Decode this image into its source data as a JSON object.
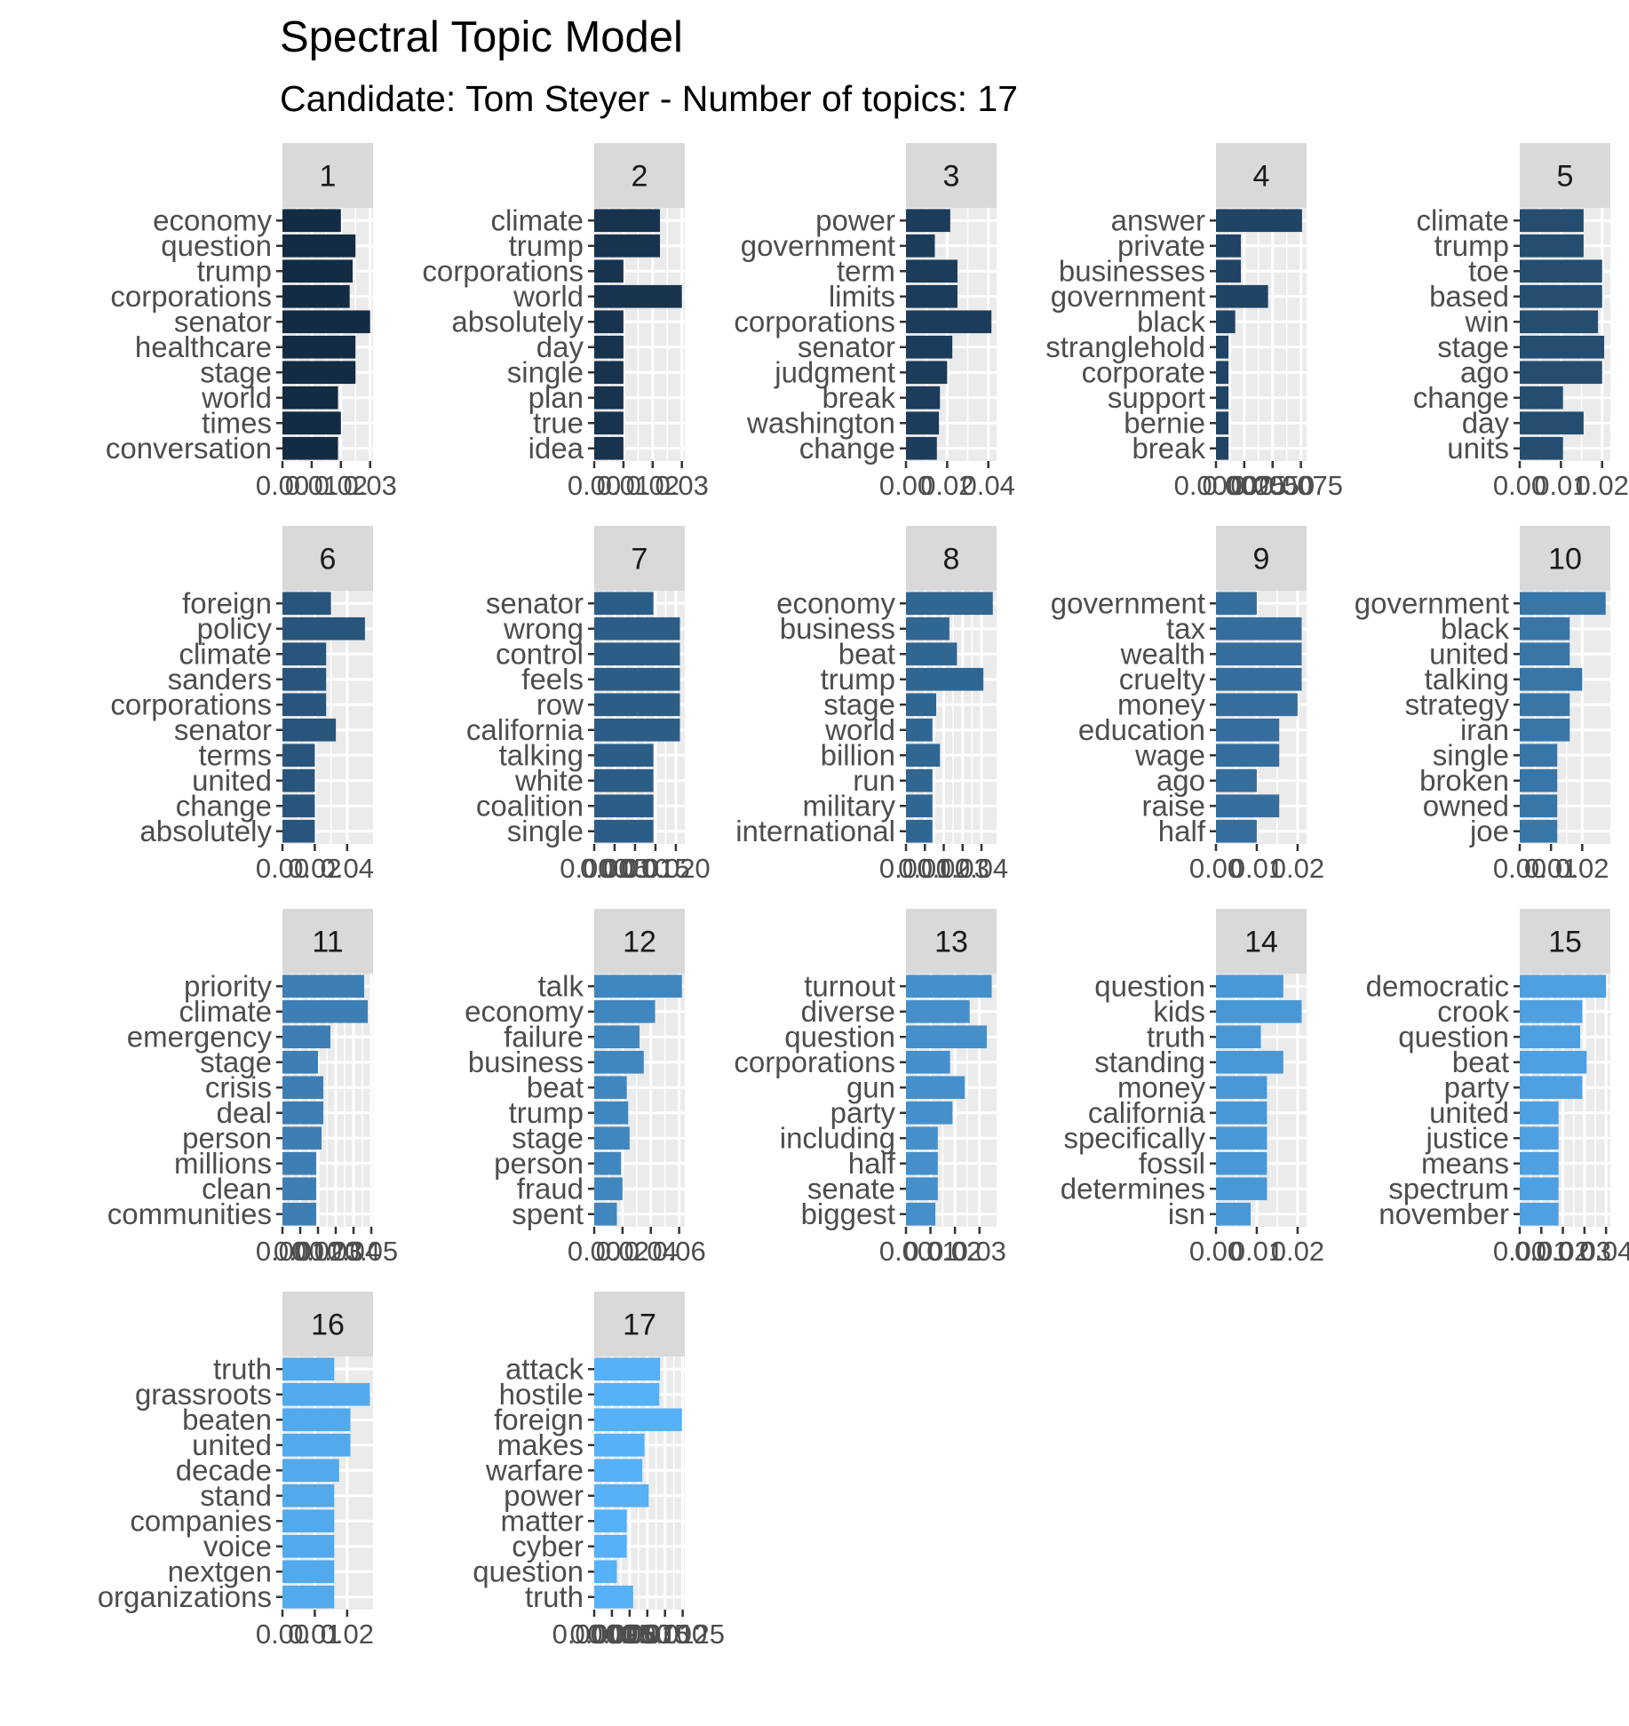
{
  "title": "Spectral Topic Model",
  "subtitle": "Candidate: Tom Steyer - Number of topics: 17",
  "chart_data": {
    "type": "bar",
    "orientation": "horizontal",
    "facet_layout": "wrap, 5 columns, free x scales",
    "xlabel": "",
    "ylabel": "",
    "grid": true,
    "legend": "none",
    "colors": {
      "panel_bg": "#ebebeb",
      "strip_bg": "#d9d9d9",
      "grid": "#ffffff",
      "bar_first": "#132b43",
      "bar_last": "#56b1f7"
    },
    "facets": [
      {
        "label": "1",
        "terms": [
          "economy",
          "question",
          "trump",
          "corporations",
          "senator",
          "healthcare",
          "stage",
          "world",
          "times",
          "conversation"
        ],
        "values": [
          0.02,
          0.025,
          0.024,
          0.023,
          0.03,
          0.025,
          0.025,
          0.019,
          0.02,
          0.019
        ],
        "xlim": [
          0,
          0.031
        ],
        "ticks": [
          0,
          0.01,
          0.02,
          0.03
        ],
        "tick_labels": [
          "0.00",
          "0.01",
          "0.02",
          "0.03"
        ]
      },
      {
        "label": "2",
        "terms": [
          "climate",
          "trump",
          "corporations",
          "world",
          "absolutely",
          "day",
          "single",
          "plan",
          "true",
          "idea"
        ],
        "values": [
          0.0225,
          0.0225,
          0.01,
          0.03,
          0.01,
          0.01,
          0.01,
          0.01,
          0.01,
          0.01
        ],
        "xlim": [
          0,
          0.031
        ],
        "ticks": [
          0,
          0.01,
          0.02,
          0.03
        ],
        "tick_labels": [
          "0.00",
          "0.01",
          "0.02",
          "0.03"
        ]
      },
      {
        "label": "3",
        "terms": [
          "power",
          "government",
          "term",
          "limits",
          "corporations",
          "senator",
          "judgment",
          "break",
          "washington",
          "change"
        ],
        "values": [
          0.0215,
          0.014,
          0.025,
          0.025,
          0.0415,
          0.0225,
          0.02,
          0.0165,
          0.016,
          0.015
        ],
        "xlim": [
          0,
          0.044
        ],
        "ticks": [
          0,
          0.02,
          0.04
        ],
        "tick_labels": [
          "0.00",
          "0.02",
          "0.04"
        ]
      },
      {
        "label": "4",
        "terms": [
          "answer",
          "private",
          "businesses",
          "government",
          "black",
          "stranglehold",
          "corporate",
          "support",
          "bernie",
          "break"
        ],
        "values": [
          0.0076,
          0.0022,
          0.0022,
          0.0046,
          0.0017,
          0.0011,
          0.0011,
          0.0011,
          0.0011,
          0.0011
        ],
        "xlim": [
          0,
          0.008
        ],
        "ticks": [
          0,
          0.0025,
          0.005,
          0.0075
        ],
        "tick_labels": [
          "0.0000",
          "0.0025",
          "0.0050",
          "0.0075"
        ]
      },
      {
        "label": "5",
        "terms": [
          "climate",
          "trump",
          "toe",
          "based",
          "win",
          "stage",
          "ago",
          "change",
          "day",
          "units"
        ],
        "values": [
          0.0155,
          0.0155,
          0.02,
          0.02,
          0.019,
          0.0205,
          0.02,
          0.0105,
          0.0155,
          0.0105
        ],
        "xlim": [
          0,
          0.022
        ],
        "ticks": [
          0,
          0.01,
          0.02
        ],
        "tick_labels": [
          "0.00",
          "0.01",
          "0.02"
        ]
      },
      {
        "label": "6",
        "terms": [
          "foreign",
          "policy",
          "climate",
          "sanders",
          "corporations",
          "senator",
          "terms",
          "united",
          "change",
          "absolutely"
        ],
        "values": [
          0.03,
          0.051,
          0.027,
          0.027,
          0.027,
          0.033,
          0.02,
          0.02,
          0.02,
          0.02
        ],
        "xlim": [
          0,
          0.056
        ],
        "ticks": [
          0,
          0.02,
          0.04
        ],
        "tick_labels": [
          "0.00",
          "0.02",
          "0.04"
        ]
      },
      {
        "label": "7",
        "terms": [
          "senator",
          "wrong",
          "control",
          "feels",
          "row",
          "california",
          "talking",
          "white",
          "coalition",
          "single"
        ],
        "values": [
          0.0145,
          0.021,
          0.021,
          0.021,
          0.021,
          0.021,
          0.0145,
          0.0145,
          0.0145,
          0.0145
        ],
        "xlim": [
          0,
          0.0222
        ],
        "ticks": [
          0,
          0.005,
          0.01,
          0.015,
          0.02
        ],
        "tick_labels": [
          "0.000",
          "0.005",
          "0.010",
          "0.015",
          "0.020"
        ]
      },
      {
        "label": "8",
        "terms": [
          "economy",
          "business",
          "beat",
          "trump",
          "stage",
          "world",
          "billion",
          "run",
          "military",
          "international"
        ],
        "values": [
          0.046,
          0.023,
          0.027,
          0.041,
          0.016,
          0.014,
          0.018,
          0.014,
          0.014,
          0.014
        ],
        "xlim": [
          0,
          0.048
        ],
        "ticks": [
          0,
          0.01,
          0.02,
          0.03,
          0.04
        ],
        "tick_labels": [
          "0.00",
          "0.01",
          "0.02",
          "0.03",
          "0.04"
        ]
      },
      {
        "label": "9",
        "terms": [
          "government",
          "tax",
          "wealth",
          "cruelty",
          "money",
          "education",
          "wage",
          "ago",
          "raise",
          "half"
        ],
        "values": [
          0.01,
          0.021,
          0.021,
          0.021,
          0.02,
          0.0155,
          0.0155,
          0.01,
          0.0155,
          0.01
        ],
        "xlim": [
          0,
          0.0222
        ],
        "ticks": [
          0,
          0.01,
          0.02
        ],
        "tick_labels": [
          "0.00",
          "0.01",
          "0.02"
        ]
      },
      {
        "label": "10",
        "terms": [
          "government",
          "black",
          "united",
          "talking",
          "strategy",
          "iran",
          "single",
          "broken",
          "owned",
          "joe"
        ],
        "values": [
          0.0275,
          0.016,
          0.016,
          0.02,
          0.016,
          0.016,
          0.012,
          0.012,
          0.012,
          0.012
        ],
        "xlim": [
          0,
          0.029
        ],
        "ticks": [
          0,
          0.01,
          0.02
        ],
        "tick_labels": [
          "0.00",
          "0.01",
          "0.02"
        ]
      },
      {
        "label": "11",
        "terms": [
          "priority",
          "climate",
          "emergency",
          "stage",
          "crisis",
          "deal",
          "person",
          "millions",
          "clean",
          "communities"
        ],
        "values": [
          0.046,
          0.048,
          0.027,
          0.02,
          0.023,
          0.023,
          0.022,
          0.019,
          0.019,
          0.019
        ],
        "xlim": [
          0,
          0.051
        ],
        "ticks": [
          0,
          0.01,
          0.02,
          0.03,
          0.04,
          0.05
        ],
        "tick_labels": [
          "0.00",
          "0.01",
          "0.02",
          "0.03",
          "0.04",
          "0.05"
        ]
      },
      {
        "label": "12",
        "terms": [
          "talk",
          "economy",
          "failure",
          "business",
          "beat",
          "trump",
          "stage",
          "person",
          "fraud",
          "spent"
        ],
        "values": [
          0.062,
          0.043,
          0.032,
          0.035,
          0.023,
          0.024,
          0.025,
          0.019,
          0.02,
          0.016
        ],
        "xlim": [
          0,
          0.064
        ],
        "ticks": [
          0,
          0.02,
          0.04,
          0.06
        ],
        "tick_labels": [
          "0.00",
          "0.02",
          "0.04",
          "0.06"
        ]
      },
      {
        "label": "13",
        "terms": [
          "turnout",
          "diverse",
          "question",
          "corporations",
          "gun",
          "party",
          "including",
          "half",
          "senate",
          "biggest"
        ],
        "values": [
          0.035,
          0.026,
          0.033,
          0.018,
          0.024,
          0.019,
          0.013,
          0.013,
          0.013,
          0.012
        ],
        "xlim": [
          0,
          0.037
        ],
        "ticks": [
          0,
          0.01,
          0.02,
          0.03
        ],
        "tick_labels": [
          "0.00",
          "0.01",
          "0.02",
          "0.03"
        ]
      },
      {
        "label": "14",
        "terms": [
          "question",
          "kids",
          "truth",
          "standing",
          "money",
          "california",
          "specifically",
          "fossil",
          "determines",
          "isn"
        ],
        "values": [
          0.0165,
          0.021,
          0.011,
          0.0165,
          0.0125,
          0.0125,
          0.0125,
          0.0125,
          0.0125,
          0.0085
        ],
        "xlim": [
          0,
          0.0222
        ],
        "ticks": [
          0,
          0.01,
          0.02
        ],
        "tick_labels": [
          "0.00",
          "0.01",
          "0.02"
        ]
      },
      {
        "label": "15",
        "terms": [
          "democratic",
          "crook",
          "question",
          "beat",
          "party",
          "united",
          "justice",
          "means",
          "spectrum",
          "november"
        ],
        "values": [
          0.04,
          0.029,
          0.028,
          0.031,
          0.029,
          0.018,
          0.018,
          0.018,
          0.018,
          0.018
        ],
        "xlim": [
          0,
          0.042
        ],
        "ticks": [
          0,
          0.01,
          0.02,
          0.03,
          0.04
        ],
        "tick_labels": [
          "0.00",
          "0.01",
          "0.02",
          "0.03",
          "0.04"
        ]
      },
      {
        "label": "16",
        "terms": [
          "truth",
          "grassroots",
          "beaten",
          "united",
          "decade",
          "stand",
          "companies",
          "voice",
          "nextgen",
          "organizations"
        ],
        "values": [
          0.016,
          0.027,
          0.021,
          0.021,
          0.0175,
          0.016,
          0.016,
          0.016,
          0.016,
          0.016
        ],
        "xlim": [
          0,
          0.028
        ],
        "ticks": [
          0,
          0.01,
          0.02
        ],
        "tick_labels": [
          "0.00",
          "0.01",
          "0.02"
        ]
      },
      {
        "label": "17",
        "terms": [
          "attack",
          "hostile",
          "foreign",
          "makes",
          "warfare",
          "power",
          "matter",
          "cyber",
          "question",
          "truth"
        ],
        "values": [
          0.0093,
          0.0092,
          0.0124,
          0.0071,
          0.0068,
          0.0077,
          0.0046,
          0.0046,
          0.0032,
          0.0055
        ],
        "xlim": [
          0,
          0.0128
        ],
        "ticks": [
          0,
          0.0025,
          0.005,
          0.0075,
          0.01,
          0.0125
        ],
        "tick_labels": [
          "0.0000",
          "0.0025",
          "0.0050",
          "0.0075",
          "0.0100",
          "0.0125"
        ]
      }
    ]
  }
}
